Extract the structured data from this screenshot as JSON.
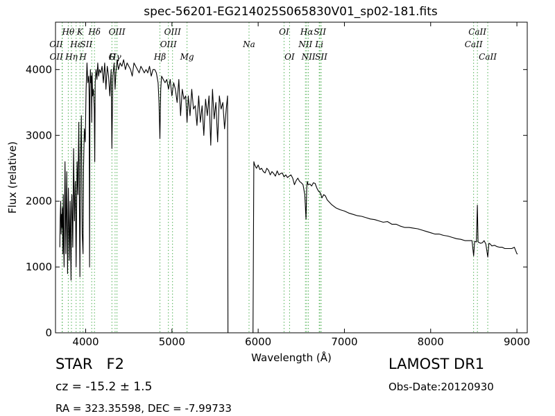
{
  "chart_data": {
    "type": "line",
    "title": "spec-56201-EG214025S065830V01_sp02-181.fits",
    "xlabel": "Wavelength (Å)",
    "ylabel": "Flux (relative)",
    "xlim": [
      3650,
      9120
    ],
    "ylim": [
      0,
      4720
    ],
    "xticks": [
      4000,
      5000,
      6000,
      7000,
      8000,
      9000
    ],
    "yticks": [
      0,
      1000,
      2000,
      3000,
      4000
    ],
    "grid": false,
    "line_color": "#000000",
    "marker_color": "#4caf50",
    "spectral_lines": [
      {
        "label": "OII",
        "wavelength": 3727,
        "row": 2,
        "anchor": "end"
      },
      {
        "label": "OII",
        "wavelength": 3729,
        "row": 3,
        "anchor": "end"
      },
      {
        "label": "Hθ",
        "wavelength": 3798,
        "row": 1,
        "anchor": "middle"
      },
      {
        "label": "Hη",
        "wavelength": 3835,
        "row": 3,
        "anchor": "middle"
      },
      {
        "label": "Hε",
        "wavelength": 3889,
        "row": 2,
        "anchor": "middle"
      },
      {
        "label": "K",
        "wavelength": 3934,
        "row": 1,
        "anchor": "middle"
      },
      {
        "label": "H",
        "wavelength": 3969,
        "row": 3,
        "anchor": "middle"
      },
      {
        "label": "SII",
        "wavelength": 4070,
        "row": 2,
        "anchor": "end"
      },
      {
        "label": "Hδ",
        "wavelength": 4102,
        "row": 1,
        "anchor": "middle"
      },
      {
        "label": "G",
        "wavelength": 4304,
        "row": 4,
        "anchor": "middle"
      },
      {
        "label": "Hγ",
        "wavelength": 4341,
        "row": 3,
        "anchor": "middle"
      },
      {
        "label": "OIII",
        "wavelength": 4363,
        "row": 1,
        "anchor": "middle"
      },
      {
        "label": "Hβ",
        "wavelength": 4861,
        "row": 4,
        "anchor": "middle"
      },
      {
        "label": "OIII",
        "wavelength": 4959,
        "row": 2,
        "anchor": "middle"
      },
      {
        "label": "OIII",
        "wavelength": 5007,
        "row": 1,
        "anchor": "middle"
      },
      {
        "label": "Mg",
        "wavelength": 5175,
        "row": 4,
        "anchor": "middle"
      },
      {
        "label": "Na",
        "wavelength": 5894,
        "row": 2,
        "anchor": "middle"
      },
      {
        "label": "OI",
        "wavelength": 6300,
        "row": 1,
        "anchor": "middle"
      },
      {
        "label": "OI",
        "wavelength": 6364,
        "row": 4,
        "anchor": "middle"
      },
      {
        "label": "NII",
        "wavelength": 6548,
        "row": 2,
        "anchor": "middle"
      },
      {
        "label": "Hα",
        "wavelength": 6563,
        "row": 1,
        "anchor": "middle"
      },
      {
        "label": "NII",
        "wavelength": 6583,
        "row": 4,
        "anchor": "middle"
      },
      {
        "label": "Li",
        "wavelength": 6708,
        "row": 2,
        "anchor": "middle"
      },
      {
        "label": "SII",
        "wavelength": 6716,
        "row": 1,
        "anchor": "middle"
      },
      {
        "label": "SII",
        "wavelength": 6731,
        "row": 4,
        "anchor": "middle"
      },
      {
        "label": "CaII",
        "wavelength": 8498,
        "row": 2,
        "anchor": "middle"
      },
      {
        "label": "CaII",
        "wavelength": 8542,
        "row": 1,
        "anchor": "middle"
      },
      {
        "label": "CaII",
        "wavelength": 8662,
        "row": 4,
        "anchor": "middle"
      }
    ],
    "series": [
      {
        "x": [
          3700,
          3705,
          3710,
          3715,
          3720,
          3725,
          3730,
          3735,
          3740,
          3745,
          3750,
          3760,
          3770,
          3780,
          3790,
          3800,
          3810,
          3820,
          3830,
          3835,
          3840,
          3850,
          3860,
          3870,
          3880,
          3889,
          3900,
          3910,
          3920,
          3933,
          3940,
          3950,
          3960,
          3969,
          3975,
          3985,
          3995,
          4005,
          4015,
          4025,
          4035,
          4040,
          4045,
          4050,
          4055,
          4060,
          4065,
          4070,
          4075,
          4080,
          4090,
          4100,
          4105,
          4110,
          4120,
          4130,
          4140,
          4150,
          4160,
          4175,
          4190,
          4205,
          4220,
          4235,
          4250,
          4265,
          4280,
          4295,
          4304,
          4315,
          4330,
          4341,
          4350,
          4365,
          4380,
          4400,
          4420,
          4440,
          4460,
          4480,
          4500,
          4520,
          4540,
          4560,
          4580,
          4600,
          4620,
          4640,
          4660,
          4680,
          4700,
          4720,
          4740,
          4760,
          4780,
          4800,
          4820,
          4840,
          4850,
          4861,
          4870,
          4880,
          4900,
          4920,
          4940,
          4960,
          4980,
          5000,
          5020,
          5040,
          5060,
          5080,
          5100,
          5120,
          5140,
          5160,
          5175,
          5190,
          5210,
          5230,
          5250,
          5270,
          5290,
          5310,
          5330,
          5350,
          5370,
          5390,
          5410,
          5430,
          5450,
          5470,
          5490,
          5510,
          5530,
          5550,
          5570,
          5590,
          5610,
          5630,
          5645,
          5650,
          5900,
          5935,
          5940,
          5950,
          5960,
          5980,
          6000,
          6020,
          6040,
          6060,
          6080,
          6100,
          6120,
          6140,
          6160,
          6180,
          6200,
          6220,
          6240,
          6260,
          6280,
          6300,
          6320,
          6340,
          6360,
          6380,
          6400,
          6420,
          6440,
          6460,
          6480,
          6500,
          6520,
          6540,
          6555,
          6563,
          6570,
          6580,
          6600,
          6620,
          6640,
          6660,
          6680,
          6700,
          6720,
          6740,
          6760,
          6780,
          6800,
          6850,
          6900,
          6950,
          7000,
          7050,
          7100,
          7150,
          7200,
          7250,
          7300,
          7350,
          7400,
          7450,
          7500,
          7550,
          7600,
          7650,
          7700,
          7750,
          7800,
          7850,
          7900,
          7950,
          8000,
          8050,
          8100,
          8150,
          8200,
          8250,
          8300,
          8350,
          8400,
          8450,
          8480,
          8498,
          8510,
          8530,
          8542,
          8550,
          8565,
          8580,
          8600,
          8620,
          8640,
          8662,
          8675,
          8690,
          8710,
          8740,
          8770,
          8800,
          8830,
          8860,
          8900,
          8940,
          8970,
          9000,
          9010
        ],
        "y": [
          1300,
          1750,
          2000,
          1500,
          1800,
          1600,
          1900,
          1200,
          2100,
          1400,
          1000,
          2600,
          1200,
          2450,
          900,
          2200,
          1100,
          2000,
          800,
          1850,
          2100,
          1300,
          2800,
          1700,
          2300,
          1000,
          2600,
          2100,
          3200,
          850,
          2600,
          3300,
          1500,
          1200,
          2500,
          3100,
          2900,
          3700,
          4100,
          3800,
          3900,
          3600,
          1000,
          3700,
          4000,
          3800,
          3900,
          3200,
          3950,
          3600,
          3700,
          3400,
          2600,
          3800,
          4000,
          3850,
          4100,
          3900,
          4000,
          3950,
          4050,
          3800,
          4100,
          3700,
          4050,
          3900,
          3600,
          4000,
          2800,
          3900,
          4100,
          3700,
          3950,
          4150,
          4000,
          4100,
          4050,
          4150,
          4000,
          4100,
          4050,
          4000,
          3900,
          4100,
          4050,
          4000,
          3950,
          4050,
          4000,
          3950,
          4000,
          3950,
          4050,
          3900,
          4000,
          4000,
          3950,
          3800,
          3500,
          2950,
          3700,
          3900,
          3850,
          3800,
          3850,
          3700,
          3850,
          3600,
          3800,
          3700,
          3500,
          3850,
          3300,
          3700,
          3550,
          3600,
          3200,
          3600,
          3300,
          3700,
          3400,
          3450,
          3150,
          3600,
          3200,
          3450,
          3000,
          3550,
          3300,
          3600,
          2850,
          3700,
          3250,
          3500,
          2900,
          3600,
          3400,
          3500,
          3100,
          3400,
          3600,
          0,
          0,
          0,
          0,
          2600,
          2550,
          2500,
          2550,
          2480,
          2500,
          2450,
          2430,
          2500,
          2470,
          2400,
          2450,
          2420,
          2380,
          2460,
          2400,
          2420,
          2430,
          2370,
          2400,
          2360,
          2380,
          2400,
          2350,
          2250,
          2310,
          2350,
          2300,
          2280,
          2250,
          2100,
          1730,
          2200,
          2300,
          2250,
          2260,
          2230,
          2280,
          2270,
          2200,
          2150,
          2130,
          2050,
          2100,
          2080,
          2020,
          1950,
          1900,
          1870,
          1850,
          1820,
          1800,
          1780,
          1770,
          1750,
          1730,
          1720,
          1700,
          1680,
          1690,
          1650,
          1650,
          1620,
          1600,
          1600,
          1590,
          1580,
          1560,
          1540,
          1520,
          1500,
          1500,
          1480,
          1470,
          1450,
          1430,
          1420,
          1400,
          1400,
          1400,
          1170,
          1390,
          1380,
          1940,
          1380,
          1370,
          1360,
          1370,
          1400,
          1350,
          1150,
          1360,
          1350,
          1320,
          1330,
          1310,
          1300,
          1300,
          1280,
          1280,
          1280,
          1300,
          1200,
          1200
        ]
      }
    ]
  },
  "footer": {
    "object_class": "STAR   F2",
    "survey": "LAMOST DR1",
    "cz": "cz = -15.2 ± 1.5",
    "obs_date": "Obs-Date:20120930",
    "radec": "RA = 323.35598, DEC = -7.99733"
  }
}
